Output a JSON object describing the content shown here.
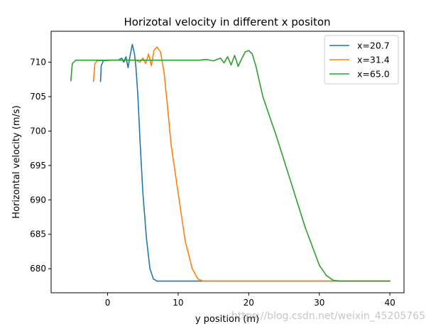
{
  "chart_data": {
    "type": "line",
    "title": "Horizotal velocity in different x positon",
    "xlabel": "y position (m)",
    "ylabel": "Horizontal velocity (m/s)",
    "xlim": [
      -8,
      42
    ],
    "ylim": [
      676.5,
      714.5
    ],
    "xticks": [
      0,
      10,
      20,
      30,
      40
    ],
    "yticks": [
      680,
      685,
      690,
      695,
      700,
      705,
      710
    ],
    "legend_position": "top-right",
    "series": [
      {
        "name": "x=20.7",
        "color": "#1f77b4",
        "x": [
          -1.0,
          -0.9,
          -0.6,
          0.5,
          1.5,
          2.0,
          2.3,
          2.6,
          2.9,
          3.2,
          3.5,
          3.8,
          4.0,
          4.3,
          4.6,
          5.0,
          5.5,
          6.0,
          6.5,
          7.0,
          8.0,
          10,
          15,
          20,
          25,
          30,
          35,
          40
        ],
        "y": [
          707.2,
          709.5,
          710.2,
          710.3,
          710.3,
          710.6,
          710.0,
          710.8,
          709.2,
          711.0,
          712.6,
          711.3,
          709.5,
          705.0,
          698.5,
          691.0,
          684.5,
          680.0,
          678.5,
          678.2,
          678.2,
          678.2,
          678.2,
          678.2,
          678.2,
          678.2,
          678.2,
          678.2
        ]
      },
      {
        "name": "x=31.4",
        "color": "#ff7f0e",
        "x": [
          -2.0,
          -1.8,
          -1.5,
          0,
          2,
          4,
          4.6,
          5.0,
          5.4,
          5.8,
          6.2,
          6.6,
          7.0,
          7.5,
          8.0,
          8.5,
          9.0,
          10.0,
          11.0,
          12.0,
          12.8,
          13.5,
          15,
          20,
          25,
          30,
          35,
          40
        ],
        "y": [
          707.2,
          709.8,
          710.2,
          710.3,
          710.3,
          710.3,
          710.0,
          710.6,
          709.8,
          711.2,
          709.5,
          711.8,
          712.2,
          711.5,
          708.5,
          703.5,
          698.0,
          691.0,
          684.0,
          680.0,
          678.5,
          678.2,
          678.2,
          678.2,
          678.2,
          678.2,
          678.2,
          678.2
        ]
      },
      {
        "name": "x=65.0",
        "color": "#2ca02c",
        "x": [
          -5.2,
          -5.0,
          -4.5,
          0,
          5,
          10,
          13,
          14,
          15,
          16,
          16.5,
          17.0,
          17.5,
          18.0,
          18.5,
          19.0,
          19.5,
          20.0,
          20.5,
          21.0,
          22.0,
          24,
          26,
          28,
          30,
          31,
          32,
          33,
          35,
          40
        ],
        "y": [
          707.3,
          709.8,
          710.3,
          710.3,
          710.3,
          710.3,
          710.3,
          710.4,
          710.2,
          710.6,
          709.9,
          710.8,
          709.6,
          711.0,
          709.4,
          710.5,
          711.5,
          711.7,
          711.2,
          709.5,
          705.0,
          699.0,
          692.5,
          686.0,
          680.5,
          679.0,
          678.3,
          678.2,
          678.2,
          678.2
        ]
      }
    ]
  },
  "watermark": "https://blog.csdn.net/weixin_45205765"
}
